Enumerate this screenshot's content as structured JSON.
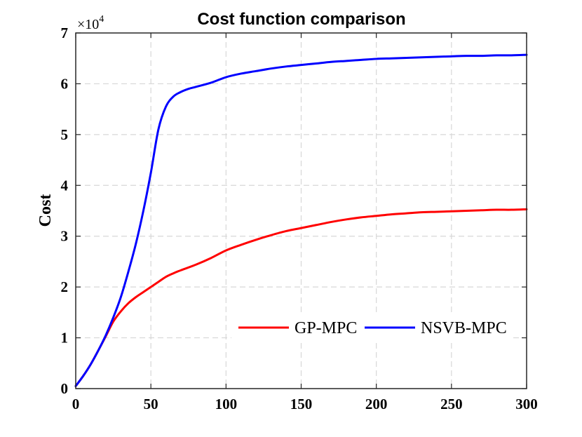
{
  "chart_data": {
    "type": "line",
    "title": "Cost function comparison",
    "xlabel": "",
    "ylabel": "Cost",
    "y_multiplier": "×10",
    "y_multiplier_exponent": "4",
    "xlim": [
      0,
      300
    ],
    "ylim": [
      0,
      7
    ],
    "xticks": [
      0,
      50,
      100,
      150,
      200,
      250,
      300
    ],
    "yticks": [
      0,
      1,
      2,
      3,
      4,
      5,
      6,
      7
    ],
    "grid": true,
    "legend_position": "lower-right",
    "series": [
      {
        "name": "GP-MPC",
        "color": "#ff0000",
        "x": [
          0,
          5,
          10,
          15,
          20,
          25,
          30,
          35,
          40,
          45,
          50,
          55,
          60,
          65,
          70,
          80,
          90,
          100,
          110,
          120,
          130,
          140,
          150,
          160,
          170,
          180,
          190,
          200,
          210,
          220,
          230,
          240,
          250,
          260,
          270,
          280,
          290,
          300
        ],
        "values": [
          0.05,
          0.25,
          0.48,
          0.75,
          1.03,
          1.32,
          1.52,
          1.68,
          1.8,
          1.9,
          2.0,
          2.1,
          2.2,
          2.27,
          2.33,
          2.44,
          2.57,
          2.72,
          2.83,
          2.93,
          3.02,
          3.1,
          3.16,
          3.22,
          3.28,
          3.33,
          3.37,
          3.4,
          3.43,
          3.45,
          3.47,
          3.48,
          3.49,
          3.5,
          3.51,
          3.52,
          3.52,
          3.53
        ]
      },
      {
        "name": "NSVB-MPC",
        "color": "#0000ff",
        "x": [
          0,
          5,
          10,
          15,
          20,
          25,
          30,
          35,
          40,
          45,
          50,
          55,
          60,
          65,
          70,
          75,
          80,
          90,
          100,
          110,
          120,
          130,
          140,
          150,
          160,
          170,
          180,
          190,
          200,
          210,
          220,
          230,
          240,
          250,
          260,
          270,
          280,
          290,
          300
        ],
        "values": [
          0.05,
          0.25,
          0.48,
          0.75,
          1.05,
          1.4,
          1.8,
          2.3,
          2.85,
          3.5,
          4.25,
          5.1,
          5.55,
          5.75,
          5.84,
          5.9,
          5.94,
          6.02,
          6.13,
          6.2,
          6.25,
          6.3,
          6.34,
          6.37,
          6.4,
          6.43,
          6.45,
          6.47,
          6.49,
          6.5,
          6.51,
          6.52,
          6.53,
          6.54,
          6.55,
          6.55,
          6.56,
          6.56,
          6.57
        ]
      }
    ]
  }
}
